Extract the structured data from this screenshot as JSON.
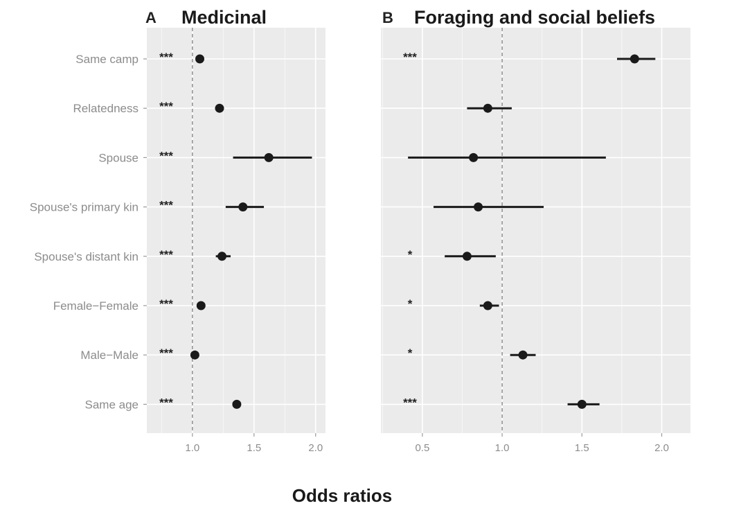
{
  "x_axis_label": "Odds ratios",
  "categories": [
    "Same camp",
    "Relatedness",
    "Spouse",
    "Spouse's primary kin",
    "Spouse's distant kin",
    "Female−Female",
    "Male−Male",
    "Same age"
  ],
  "chart_data": [
    {
      "type": "scatter",
      "panel": "A",
      "title": "Medicinal",
      "xlabel": "Odds ratios",
      "xlim": [
        0.63,
        2.08
      ],
      "x_ticks": [
        1.0,
        1.5,
        2.0
      ],
      "x_tick_labels": [
        "1.0",
        "1.5",
        "2.0"
      ],
      "reference_line": 1.0,
      "grid": true,
      "background": "#ebebeb",
      "points": [
        {
          "category": "Same camp",
          "estimate": 1.06,
          "lower": 1.04,
          "upper": 1.08,
          "significance": "***"
        },
        {
          "category": "Relatedness",
          "estimate": 1.22,
          "lower": 1.2,
          "upper": 1.24,
          "significance": "***"
        },
        {
          "category": "Spouse",
          "estimate": 1.62,
          "lower": 1.33,
          "upper": 1.97,
          "significance": "***"
        },
        {
          "category": "Spouse's primary kin",
          "estimate": 1.41,
          "lower": 1.27,
          "upper": 1.58,
          "significance": "***"
        },
        {
          "category": "Spouse's distant kin",
          "estimate": 1.24,
          "lower": 1.19,
          "upper": 1.31,
          "significance": "***"
        },
        {
          "category": "Female−Female",
          "estimate": 1.07,
          "lower": 1.05,
          "upper": 1.09,
          "significance": "***"
        },
        {
          "category": "Male−Male",
          "estimate": 1.02,
          "lower": 1.0,
          "upper": 1.04,
          "significance": "***"
        },
        {
          "category": "Same age",
          "estimate": 1.36,
          "lower": 1.34,
          "upper": 1.38,
          "significance": "***"
        }
      ]
    },
    {
      "type": "scatter",
      "panel": "B",
      "title": "Foraging and social beliefs",
      "xlabel": "Odds ratios",
      "xlim": [
        0.24,
        2.18
      ],
      "x_ticks": [
        0.5,
        1.0,
        1.5,
        2.0
      ],
      "x_tick_labels": [
        "0.5",
        "1.0",
        "1.5",
        "2.0"
      ],
      "reference_line": 1.0,
      "grid": true,
      "background": "#ebebeb",
      "points": [
        {
          "category": "Same camp",
          "estimate": 1.83,
          "lower": 1.72,
          "upper": 1.96,
          "significance": "***"
        },
        {
          "category": "Relatedness",
          "estimate": 0.91,
          "lower": 0.78,
          "upper": 1.06,
          "significance": ""
        },
        {
          "category": "Spouse",
          "estimate": 0.82,
          "lower": 0.41,
          "upper": 1.65,
          "significance": ""
        },
        {
          "category": "Spouse's primary kin",
          "estimate": 0.85,
          "lower": 0.57,
          "upper": 1.26,
          "significance": ""
        },
        {
          "category": "Spouse's distant kin",
          "estimate": 0.78,
          "lower": 0.64,
          "upper": 0.96,
          "significance": "*"
        },
        {
          "category": "Female−Female",
          "estimate": 0.91,
          "lower": 0.86,
          "upper": 0.98,
          "significance": "*"
        },
        {
          "category": "Male−Male",
          "estimate": 1.13,
          "lower": 1.05,
          "upper": 1.21,
          "significance": "*"
        },
        {
          "category": "Same age",
          "estimate": 1.5,
          "lower": 1.41,
          "upper": 1.61,
          "significance": "***"
        }
      ]
    }
  ],
  "colors": {
    "panel_background": "#ebebeb",
    "grid": "#ffffff",
    "point": "#1a1a1a",
    "reference_line": "#7f7f7f",
    "axis_text": "#8c8c8c"
  }
}
